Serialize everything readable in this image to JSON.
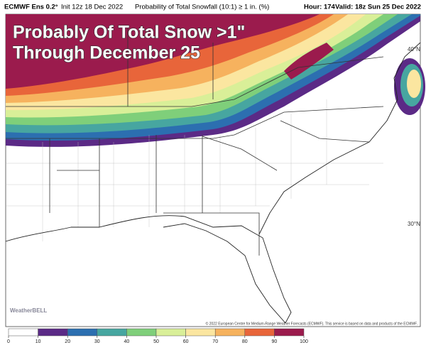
{
  "header": {
    "model": "ECMWF Ens 0.2°",
    "init": "Init 12z 18 Dec 2022",
    "product": "Probability of Total Snowfall (10:1) ≥ 1 in. (%)",
    "hour": "Hour: 174",
    "valid": "Valid: 18z Sun 25 Dec 2022"
  },
  "overlay": {
    "line1": "Probably Of Total Snow >1\"",
    "line2": "Through December 25"
  },
  "map": {
    "lat_labels": [
      "40°N",
      "30°N"
    ],
    "logo": "WeatherBELL",
    "credit": "© 2022 European Centre for Medium-Range Weather Forecasts (ECMWF). This service is based on data and products of the ECMWF."
  },
  "legend": {
    "ticks": [
      0,
      10,
      20,
      30,
      40,
      50,
      60,
      70,
      80,
      90,
      100
    ],
    "colors": [
      "#ffffff",
      "#5b2a86",
      "#2c6fb0",
      "#47a6a0",
      "#7fcf7a",
      "#d9ef98",
      "#fbe6a0",
      "#f6b25e",
      "#e8653a",
      "#9b1b4d"
    ]
  }
}
